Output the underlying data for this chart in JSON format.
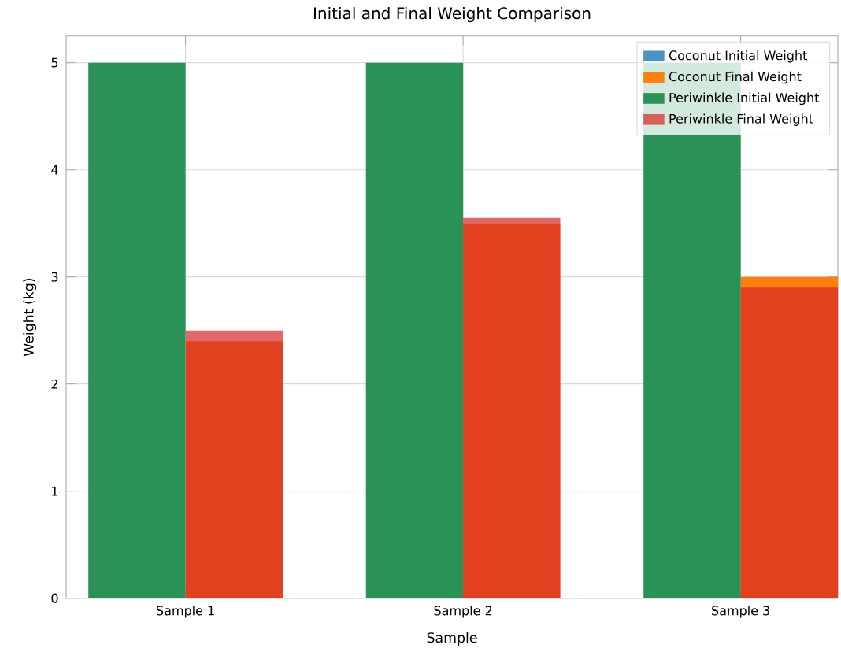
{
  "chart_data": {
    "type": "bar",
    "title": "Initial and Final Weight Comparison",
    "xlabel": "Sample",
    "ylabel": "Weight (kg)",
    "categories": [
      "Sample 1",
      "Sample 2",
      "Sample 3"
    ],
    "series": [
      {
        "name": "Coconut Initial Weight",
        "color": "#1f77b4",
        "values": [
          null,
          null,
          null
        ]
      },
      {
        "name": "Coconut Final Weight",
        "color": "#ff7f0e",
        "values": [
          2.4,
          3.5,
          3.0
        ]
      },
      {
        "name": "Periwinkle Initial Weight",
        "color": "#2a9256",
        "values": [
          5,
          5,
          5
        ]
      },
      {
        "name": "Periwinkle Final Weight",
        "color": "#d62728",
        "values": [
          2.5,
          3.55,
          2.9
        ]
      }
    ],
    "ylim": [
      0,
      5.25
    ],
    "yticks": [
      0,
      1,
      2,
      3,
      4,
      5
    ],
    "grid": true,
    "legend": "top right"
  }
}
